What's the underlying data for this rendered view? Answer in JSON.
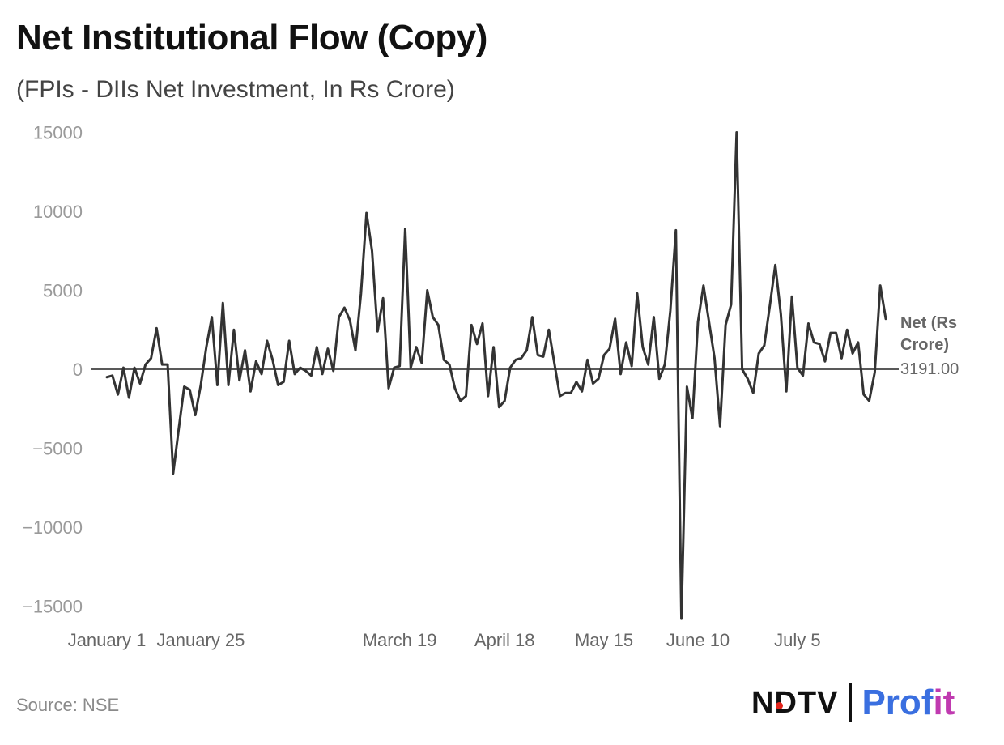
{
  "header": {
    "title": "Net Institutional Flow (Copy)",
    "subtitle": "(FPIs - DIIs Net Investment, In Rs Crore)"
  },
  "footer": {
    "source": "Source: NSE",
    "logo_ndtv": "NDTV",
    "logo_profit_a": "Prof",
    "logo_profit_b": "it"
  },
  "colors": {
    "line": "#333333",
    "zero_line": "#222222",
    "tick_text": "#9a9a9a",
    "label_text": "#666666"
  },
  "chart_data": {
    "type": "line",
    "title": "Net Institutional Flow (Copy)",
    "subtitle": "(FPIs - DIIs Net Investment, In Rs Crore)",
    "ylim": [
      -15500,
      15000
    ],
    "y_ticks": [
      15000,
      10000,
      5000,
      0,
      -5000,
      -10000,
      -15000
    ],
    "y_tick_labels": [
      "15000",
      "10000",
      "5000",
      "0",
      "−5000",
      "−10000",
      "−15000"
    ],
    "x_tick_labels": [
      {
        "label": "January 1",
        "index": 0
      },
      {
        "label": "January 25",
        "index": 17
      },
      {
        "label": "March 19",
        "index": 53
      },
      {
        "label": "April 18",
        "index": 72
      },
      {
        "label": "May 15",
        "index": 90
      },
      {
        "label": "June 10",
        "index": 107
      },
      {
        "label": "July 5",
        "index": 125
      }
    ],
    "grid": false,
    "series": [
      {
        "name": "Net (Rs Crore)",
        "last_value_label": "3191.00",
        "values": [
          -500,
          -400,
          -1600,
          100,
          -1800,
          100,
          -900,
          300,
          700,
          2600,
          300,
          300,
          -6600,
          -3800,
          -1100,
          -1300,
          -2900,
          -1000,
          1400,
          3300,
          -1000,
          4200,
          -1000,
          2500,
          -700,
          1200,
          -1400,
          500,
          -300,
          1800,
          600,
          -1000,
          -800,
          1800,
          -300,
          100,
          -100,
          -400,
          1400,
          -300,
          1300,
          -100,
          3300,
          3900,
          3100,
          1200,
          4800,
          9900,
          7500,
          2400,
          4500,
          -1200,
          100,
          200,
          8900,
          100,
          1400,
          400,
          5000,
          3300,
          2800,
          600,
          300,
          -1200,
          -2000,
          -1700,
          2800,
          1600,
          2900,
          -1700,
          1400,
          -2400,
          -2000,
          100,
          600,
          700,
          1200,
          3300,
          900,
          800,
          2500,
          400,
          -1700,
          -1500,
          -1500,
          -800,
          -1400,
          600,
          -900,
          -600,
          900,
          1300,
          3200,
          -300,
          1700,
          200,
          4800,
          1400,
          300,
          3300,
          -600,
          300,
          3700,
          8800,
          -15800,
          -1100,
          -3100,
          3000,
          5300,
          3000,
          700,
          -3600,
          2800,
          4100,
          15000,
          0,
          -600,
          -1500,
          1000,
          1500,
          4000,
          6600,
          3500,
          -1400,
          4600,
          100,
          -400,
          2900,
          1700,
          1600,
          500,
          2300,
          2300,
          700,
          2500,
          1000,
          1700,
          -1600,
          -2000,
          -200,
          5300,
          3191
        ]
      }
    ]
  }
}
